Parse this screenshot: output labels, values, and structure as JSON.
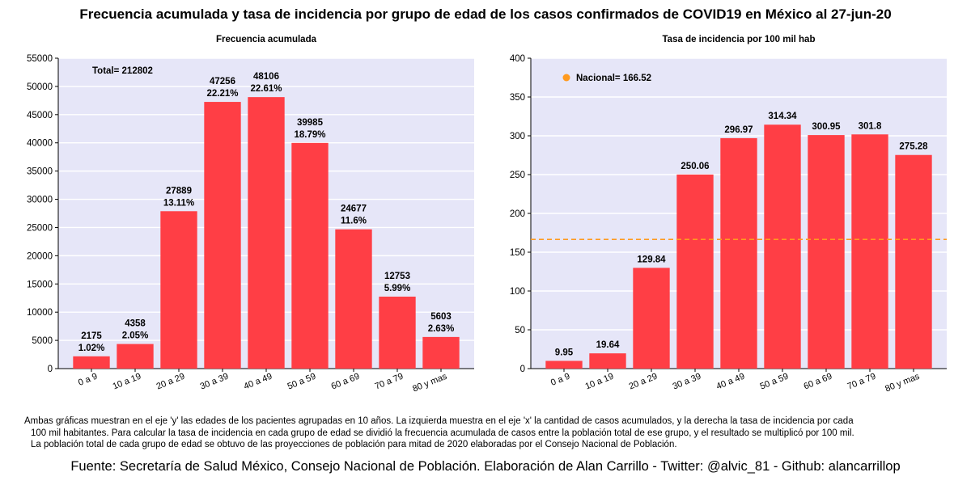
{
  "title": "Frecuencia acumulada y tasa de incidencia por grupo de edad de los casos confirmados de COVID19 en México al 27-jun-20",
  "chart_data": [
    {
      "type": "bar",
      "title": "Frecuencia acumulada",
      "categories": [
        "0 a 9",
        "10 a 19",
        "20 a 29",
        "30 a 39",
        "40 a 49",
        "50 a 59",
        "60 a 69",
        "70 a 79",
        "80 y mas"
      ],
      "values": [
        2175,
        4358,
        27889,
        47256,
        48106,
        39985,
        24677,
        12753,
        5603
      ],
      "value_labels": [
        "2175",
        "4358",
        "27889",
        "47256",
        "48106",
        "39985",
        "24677",
        "12753",
        "5603"
      ],
      "percent_labels": [
        "1.02%",
        "2.05%",
        "13.11%",
        "22.21%",
        "22.61%",
        "18.79%",
        "11.6%",
        "5.99%",
        "2.63%"
      ],
      "ylim": [
        0,
        55000
      ],
      "yticks": [
        "0",
        "5000",
        "10000",
        "15000",
        "20000",
        "25000",
        "30000",
        "35000",
        "40000",
        "45000",
        "50000",
        "55000"
      ],
      "ytick_values": [
        0,
        5000,
        10000,
        15000,
        20000,
        25000,
        30000,
        35000,
        40000,
        45000,
        50000,
        55000
      ],
      "annotation": "Total= 212802",
      "grid": true,
      "bar_color": "#ff3e45",
      "background_color": "#e6e6f8"
    },
    {
      "type": "bar",
      "title": "Tasa de incidencia por 100 mil hab",
      "categories": [
        "0 a 9",
        "10 a 19",
        "20 a 29",
        "30 a 39",
        "40 a 49",
        "50 a 59",
        "60 a 69",
        "70 a 79",
        "80 y mas"
      ],
      "values": [
        9.95,
        19.64,
        129.84,
        250.06,
        296.97,
        314.34,
        300.95,
        301.8,
        275.28
      ],
      "value_labels": [
        "9.95",
        "19.64",
        "129.84",
        "250.06",
        "296.97",
        "314.34",
        "300.95",
        "301.8",
        "275.28"
      ],
      "ylim": [
        0,
        400
      ],
      "yticks": [
        "0",
        "50",
        "100",
        "150",
        "200",
        "250",
        "300",
        "350",
        "400"
      ],
      "ytick_values": [
        0,
        50,
        100,
        150,
        200,
        250,
        300,
        350,
        400
      ],
      "reference_line": {
        "label": "Nacional= 166.52",
        "value": 166.52,
        "color": "#ff9a1f"
      },
      "grid": true,
      "bar_color": "#ff3e45",
      "background_color": "#e6e6f8"
    }
  ],
  "footnote": [
    "Ambas gráficas muestran en el eje 'y' las edades de los pacientes agrupadas en 10 años. La izquierda muestra en el eje 'x' la cantidad de casos acumulados, y la derecha la tasa de incidencia por cada",
    "100 mil habitantes. Para calcular la tasa de incidencia en cada grupo de edad se dividió la frecuencia acumulada de casos entre la población total de ese grupo, y el resultado se multiplicó por 100 mil.",
    "La población total de cada grupo de edad se obtuvo de las proyecciones de población para mitad de 2020 elaboradas por el Consejo Nacional de Población."
  ],
  "source": "Fuente: Secretaría de Salud México, Consejo Nacional de Población. Elaboración de Alan Carrillo - Twitter: @alvic_81 - Github: alancarrillop"
}
